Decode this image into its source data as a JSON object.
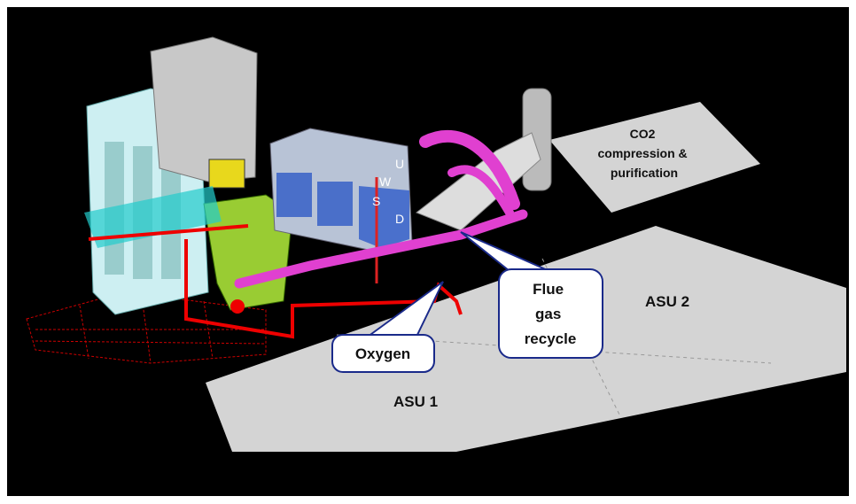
{
  "labels": {
    "co2_area": [
      "CO2",
      "compression &",
      "purification"
    ],
    "asu2": "ASU 2",
    "asu1": "ASU 1",
    "oxygen": "Oxygen",
    "flue_gas_recycle": [
      "Flue",
      "gas",
      "recycle"
    ],
    "baghouse_letters": [
      "U",
      "W",
      "S",
      "D"
    ]
  }
}
